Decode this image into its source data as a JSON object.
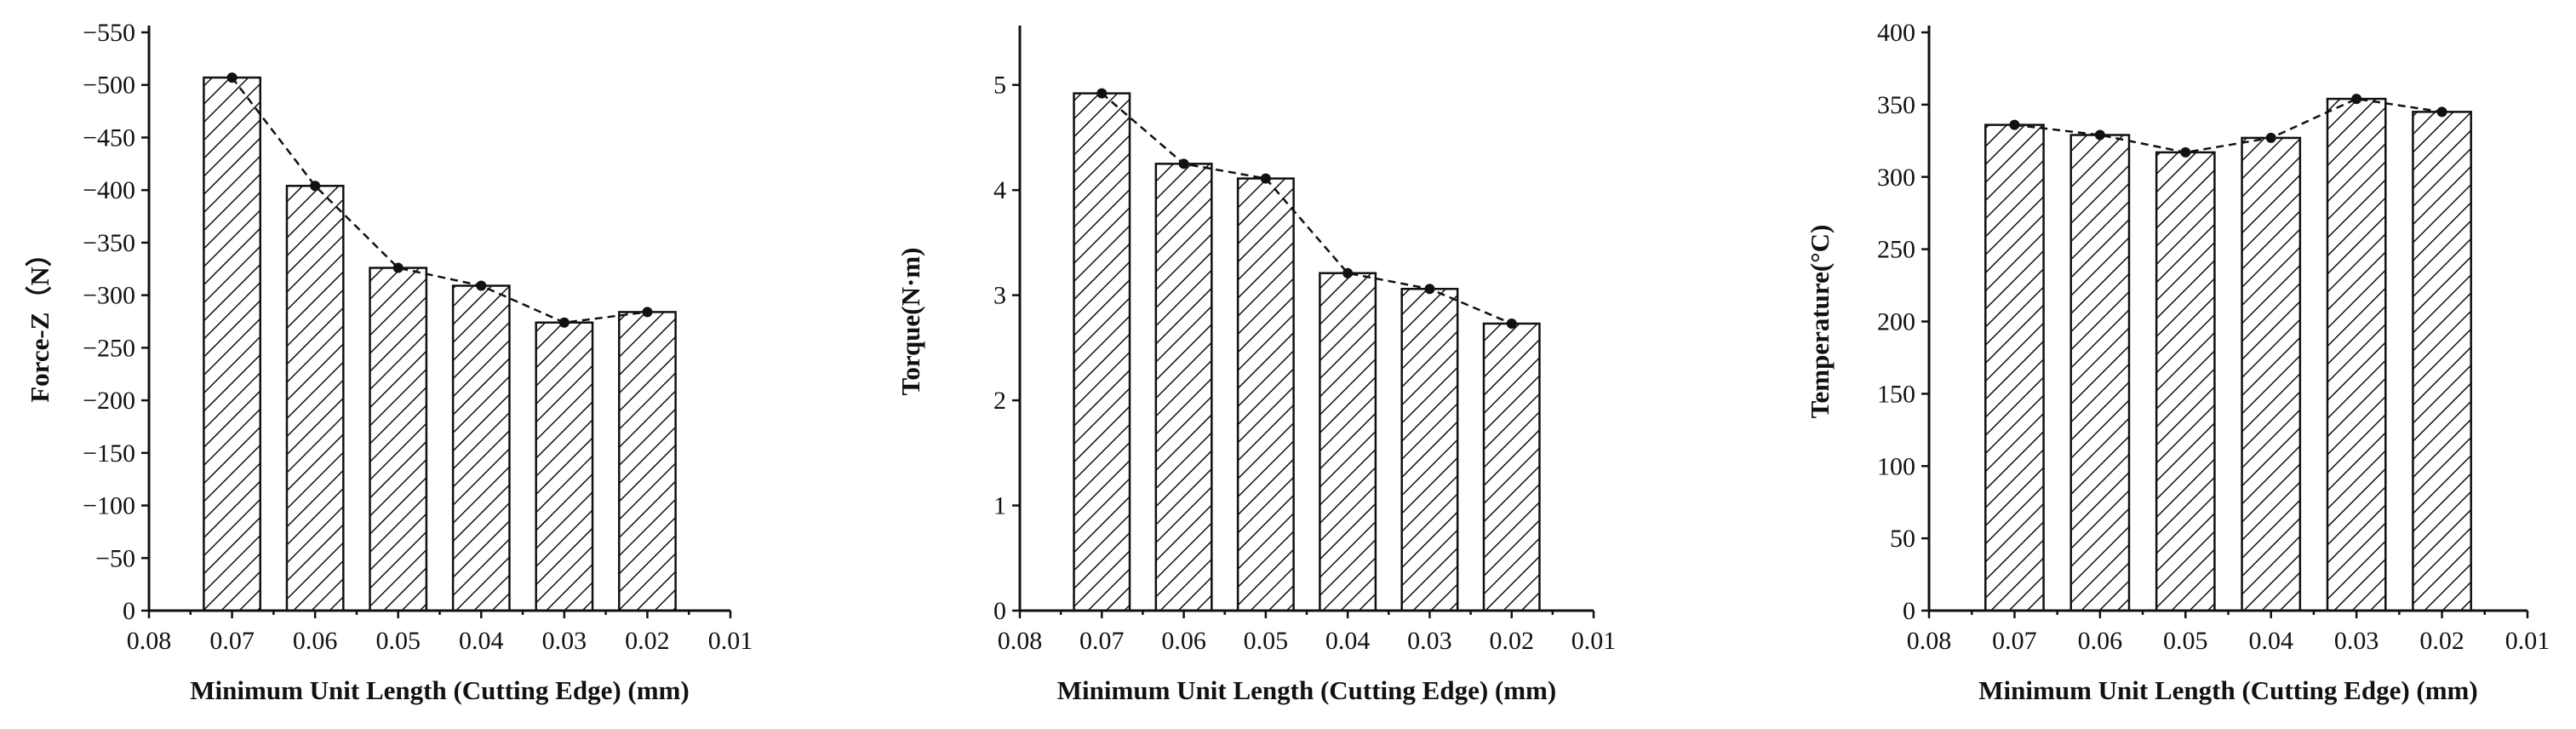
{
  "chart_data": [
    {
      "type": "bar",
      "xlabel": "Minimum Unit Length (Cutting Edge) (mm)",
      "ylabel": "Force-Z（N）",
      "x": [
        0.07,
        0.06,
        0.05,
        0.04,
        0.03,
        0.02
      ],
      "values": [
        507,
        404,
        326,
        309,
        274,
        284
      ],
      "xlim": [
        0.08,
        0.01
      ],
      "xticks": [
        "0.08",
        "0.07",
        "0.06",
        "0.05",
        "0.04",
        "0.03",
        "0.02",
        "0.01"
      ],
      "ylim": [
        0,
        550
      ],
      "yticks": [
        "0",
        "−50",
        "−100",
        "−150",
        "−200",
        "−250",
        "−300",
        "−350",
        "−400",
        "−450",
        "−500",
        "−550"
      ],
      "yticks_values": [
        0,
        50,
        100,
        150,
        200,
        250,
        300,
        350,
        400,
        450,
        500,
        550
      ],
      "bar_pattern": "diagonal-hatch",
      "trend_line": "dashed with dot markers"
    },
    {
      "type": "bar",
      "xlabel": "Minimum Unit Length (Cutting Edge) (mm)",
      "ylabel": "Torque(N·m)",
      "x": [
        0.07,
        0.06,
        0.05,
        0.04,
        0.03,
        0.02
      ],
      "values": [
        4.92,
        4.25,
        4.11,
        3.21,
        3.06,
        2.73
      ],
      "xlim": [
        0.08,
        0.01
      ],
      "xticks": [
        "0.08",
        "0.07",
        "0.06",
        "0.05",
        "0.04",
        "0.03",
        "0.02",
        "0.01"
      ],
      "ylim": [
        0,
        5.5
      ],
      "yticks": [
        "0",
        "1",
        "2",
        "3",
        "4",
        "5"
      ],
      "yticks_values": [
        0,
        1,
        2,
        3,
        4,
        5
      ],
      "bar_pattern": "diagonal-hatch",
      "trend_line": "dashed with dot markers"
    },
    {
      "type": "bar",
      "xlabel": "Minimum Unit Length (Cutting Edge) (mm)",
      "ylabel": "Temperature(°C)",
      "x": [
        0.07,
        0.06,
        0.05,
        0.04,
        0.03,
        0.02
      ],
      "values": [
        336,
        329,
        317,
        327,
        354,
        345
      ],
      "xlim": [
        0.08,
        0.01
      ],
      "xticks": [
        "0.08",
        "0.07",
        "0.06",
        "0.05",
        "0.04",
        "0.03",
        "0.02",
        "0.01"
      ],
      "ylim": [
        0,
        400
      ],
      "yticks": [
        "0",
        "50",
        "100",
        "150",
        "200",
        "250",
        "300",
        "350",
        "400"
      ],
      "yticks_values": [
        0,
        50,
        100,
        150,
        200,
        250,
        300,
        350,
        400
      ],
      "bar_pattern": "diagonal-hatch",
      "trend_line": "dashed with dot markers"
    }
  ]
}
